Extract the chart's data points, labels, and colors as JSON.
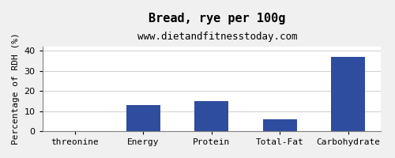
{
  "title": "Bread, rye per 100g",
  "subtitle": "www.dietandfitnesstoday.com",
  "categories": [
    "threonine",
    "Energy",
    "Protein",
    "Total-Fat",
    "Carbohydrate"
  ],
  "values": [
    0,
    13,
    15,
    6,
    37
  ],
  "bar_color": "#2e4d9e",
  "ylabel": "Percentage of RDH (%)",
  "ylim": [
    0,
    42
  ],
  "yticks": [
    0,
    10,
    20,
    30,
    40
  ],
  "background_color": "#f0f0f0",
  "plot_bg_color": "#ffffff",
  "title_fontsize": 11,
  "subtitle_fontsize": 9,
  "tick_fontsize": 8,
  "ylabel_fontsize": 8
}
